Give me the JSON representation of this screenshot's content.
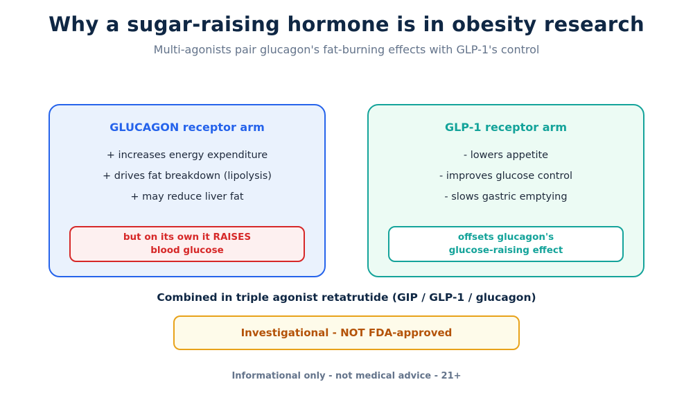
{
  "header": {
    "title": "Why a sugar-raising hormone is in obesity research",
    "subtitle": "Multi-agonists pair glucagon's fat-burning effects with GLP-1's control"
  },
  "panels": {
    "glucagon": {
      "heading": "GLUCAGON receptor arm",
      "bullets": [
        "+ increases energy expenditure",
        "+ drives fat breakdown (lipolysis)",
        "+ may reduce liver fat"
      ],
      "callout": {
        "line1": "but on its own it RAISES",
        "line2": "blood glucose"
      }
    },
    "glp1": {
      "heading": "GLP-1 receptor arm",
      "bullets": [
        "- lowers appetite",
        "- improves glucose control",
        "- slows gastric emptying"
      ],
      "callout": {
        "line1": "offsets glucagon's",
        "line2": "glucose-raising effect"
      }
    }
  },
  "combined_label": "Combined in triple agonist retatrutide (GIP / GLP-1 / glucagon)",
  "status": "Investigational - NOT FDA-approved",
  "disclaimer": "Informational only - not medical advice - 21+",
  "colors": {
    "title": "#0f2744",
    "glucagon_accent": "#2563eb",
    "glp1_accent": "#14a39a",
    "warning_red": "#d62828",
    "status_orange": "#b45309"
  }
}
